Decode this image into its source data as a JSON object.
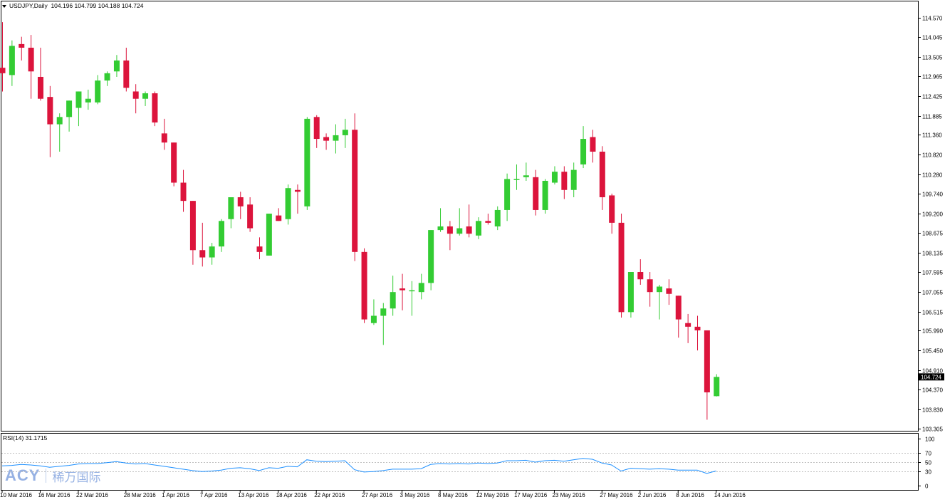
{
  "window": {
    "symbol_line": "USDJPY,Daily",
    "ohlc_line": "104.196 104.799 104.188 104.724",
    "menu_icon": "triangle-down-icon"
  },
  "colors": {
    "bull": "#33cc33",
    "bear": "#dc143c",
    "rsi_line": "#1e90ff",
    "grid": "#c0c0c0",
    "background": "#ffffff"
  },
  "watermark": {
    "brand": "ACY",
    "cn": "稀万国际"
  },
  "chart_data": [
    {
      "type": "candlestick",
      "title": "USDJPY,Daily",
      "ylim": [
        103.305,
        114.57
      ],
      "price_ticks": [
        "114.570",
        "114.045",
        "113.505",
        "112.965",
        "112.425",
        "111.885",
        "111.360",
        "110.820",
        "110.280",
        "109.740",
        "109.200",
        "108.675",
        "108.135",
        "107.595",
        "107.055",
        "106.515",
        "105.990",
        "105.450",
        "104.910",
        "104.370",
        "103.830",
        "103.305"
      ],
      "current_price": "104.724",
      "x_labels": [
        "10 Mar 2016",
        "16 Mar 2016",
        "22 Mar 2016",
        "28 Mar 2016",
        "1 Apr 2016",
        "7 Apr 2016",
        "13 Apr 2016",
        "18 Apr 2016",
        "22 Apr 2016",
        "27 Apr 2016",
        "3 May 2016",
        "8 May 2016",
        "12 May 2016",
        "17 May 2016",
        "23 May 2016",
        "27 May 2016",
        "2 Jun 2016",
        "8 Jun 2016",
        "14 Jun 2016"
      ],
      "candles": [
        {
          "o": 113.2,
          "h": 114.45,
          "l": 112.55,
          "c": 113.05
        },
        {
          "o": 113.0,
          "h": 113.95,
          "l": 112.7,
          "c": 113.8
        },
        {
          "o": 113.85,
          "h": 114.05,
          "l": 113.4,
          "c": 113.75
        },
        {
          "o": 113.75,
          "h": 114.1,
          "l": 112.35,
          "c": 113.1
        },
        {
          "o": 112.95,
          "h": 113.75,
          "l": 112.3,
          "c": 112.35
        },
        {
          "o": 112.4,
          "h": 112.7,
          "l": 110.75,
          "c": 111.65
        },
        {
          "o": 111.65,
          "h": 111.95,
          "l": 110.9,
          "c": 111.85
        },
        {
          "o": 111.85,
          "h": 112.3,
          "l": 111.45,
          "c": 112.3
        },
        {
          "o": 112.1,
          "h": 112.55,
          "l": 111.6,
          "c": 112.55
        },
        {
          "o": 112.25,
          "h": 112.6,
          "l": 112.05,
          "c": 112.35
        },
        {
          "o": 112.25,
          "h": 113.0,
          "l": 112.2,
          "c": 112.85
        },
        {
          "o": 112.85,
          "h": 113.1,
          "l": 112.7,
          "c": 113.05
        },
        {
          "o": 113.1,
          "h": 113.55,
          "l": 112.95,
          "c": 113.4
        },
        {
          "o": 113.4,
          "h": 113.75,
          "l": 112.55,
          "c": 112.65
        },
        {
          "o": 112.55,
          "h": 112.75,
          "l": 111.95,
          "c": 112.35
        },
        {
          "o": 112.35,
          "h": 112.55,
          "l": 112.15,
          "c": 112.5
        },
        {
          "o": 112.5,
          "h": 112.55,
          "l": 111.6,
          "c": 111.7
        },
        {
          "o": 111.4,
          "h": 111.8,
          "l": 110.95,
          "c": 111.15
        },
        {
          "o": 111.15,
          "h": 111.15,
          "l": 109.95,
          "c": 110.05
        },
        {
          "o": 110.05,
          "h": 110.4,
          "l": 109.25,
          "c": 109.55
        },
        {
          "o": 109.55,
          "h": 109.55,
          "l": 107.8,
          "c": 108.2
        },
        {
          "o": 108.2,
          "h": 108.95,
          "l": 107.75,
          "c": 108.0
        },
        {
          "o": 108.0,
          "h": 108.4,
          "l": 107.8,
          "c": 108.3
        },
        {
          "o": 108.3,
          "h": 109.05,
          "l": 108.15,
          "c": 109.0
        },
        {
          "o": 109.05,
          "h": 109.6,
          "l": 108.8,
          "c": 109.65
        },
        {
          "o": 109.65,
          "h": 109.8,
          "l": 109.05,
          "c": 109.4
        },
        {
          "o": 109.45,
          "h": 109.65,
          "l": 108.7,
          "c": 108.8
        },
        {
          "o": 108.3,
          "h": 108.55,
          "l": 107.95,
          "c": 108.15
        },
        {
          "o": 108.05,
          "h": 109.2,
          "l": 108.05,
          "c": 109.2
        },
        {
          "o": 109.15,
          "h": 109.35,
          "l": 109.0,
          "c": 109.0
        },
        {
          "o": 109.05,
          "h": 110.0,
          "l": 108.9,
          "c": 109.9
        },
        {
          "o": 109.85,
          "h": 110.0,
          "l": 109.2,
          "c": 109.8
        },
        {
          "o": 109.4,
          "h": 111.85,
          "l": 109.3,
          "c": 111.8
        },
        {
          "o": 111.85,
          "h": 111.9,
          "l": 111.0,
          "c": 111.25
        },
        {
          "o": 111.3,
          "h": 111.4,
          "l": 110.95,
          "c": 111.2
        },
        {
          "o": 111.2,
          "h": 111.65,
          "l": 110.85,
          "c": 111.35
        },
        {
          "o": 111.35,
          "h": 111.8,
          "l": 111.0,
          "c": 111.5
        },
        {
          "o": 111.5,
          "h": 111.95,
          "l": 107.9,
          "c": 108.15
        },
        {
          "o": 108.15,
          "h": 108.25,
          "l": 106.2,
          "c": 106.3
        },
        {
          "o": 106.2,
          "h": 106.85,
          "l": 106.15,
          "c": 106.4
        },
        {
          "o": 106.4,
          "h": 106.75,
          "l": 105.6,
          "c": 106.6
        },
        {
          "o": 106.6,
          "h": 107.5,
          "l": 106.4,
          "c": 107.05
        },
        {
          "o": 107.15,
          "h": 107.55,
          "l": 106.55,
          "c": 107.1
        },
        {
          "o": 107.1,
          "h": 107.35,
          "l": 106.4,
          "c": 107.1
        },
        {
          "o": 107.05,
          "h": 107.55,
          "l": 106.85,
          "c": 107.3
        },
        {
          "o": 107.3,
          "h": 108.75,
          "l": 107.1,
          "c": 108.75
        },
        {
          "o": 108.75,
          "h": 109.35,
          "l": 108.7,
          "c": 108.85
        },
        {
          "o": 108.85,
          "h": 109.0,
          "l": 108.2,
          "c": 108.65
        },
        {
          "o": 108.65,
          "h": 109.35,
          "l": 108.6,
          "c": 108.8
        },
        {
          "o": 108.85,
          "h": 109.45,
          "l": 108.55,
          "c": 108.65
        },
        {
          "o": 108.6,
          "h": 109.1,
          "l": 108.5,
          "c": 109.0
        },
        {
          "o": 109.0,
          "h": 109.2,
          "l": 108.9,
          "c": 108.95
        },
        {
          "o": 108.85,
          "h": 109.4,
          "l": 108.75,
          "c": 109.3
        },
        {
          "o": 109.3,
          "h": 110.3,
          "l": 109.0,
          "c": 110.15
        },
        {
          "o": 110.15,
          "h": 110.55,
          "l": 109.85,
          "c": 110.15
        },
        {
          "o": 110.2,
          "h": 110.6,
          "l": 110.1,
          "c": 110.25
        },
        {
          "o": 110.2,
          "h": 110.4,
          "l": 109.15,
          "c": 109.3
        },
        {
          "o": 109.3,
          "h": 110.15,
          "l": 109.2,
          "c": 110.1
        },
        {
          "o": 110.05,
          "h": 110.5,
          "l": 110.0,
          "c": 110.35
        },
        {
          "o": 110.35,
          "h": 110.5,
          "l": 109.6,
          "c": 109.85
        },
        {
          "o": 109.85,
          "h": 110.6,
          "l": 109.65,
          "c": 110.4
        },
        {
          "o": 110.55,
          "h": 111.6,
          "l": 110.45,
          "c": 111.25
        },
        {
          "o": 111.3,
          "h": 111.5,
          "l": 110.6,
          "c": 110.9
        },
        {
          "o": 110.9,
          "h": 111.05,
          "l": 109.3,
          "c": 109.65
        },
        {
          "o": 109.7,
          "h": 109.75,
          "l": 108.65,
          "c": 108.95
        },
        {
          "o": 108.95,
          "h": 109.2,
          "l": 106.35,
          "c": 106.5
        },
        {
          "o": 106.5,
          "h": 107.6,
          "l": 106.35,
          "c": 107.6
        },
        {
          "o": 107.6,
          "h": 107.95,
          "l": 107.25,
          "c": 107.4
        },
        {
          "o": 107.4,
          "h": 107.6,
          "l": 106.65,
          "c": 107.05
        },
        {
          "o": 107.05,
          "h": 107.25,
          "l": 106.3,
          "c": 107.2
        },
        {
          "o": 107.15,
          "h": 107.4,
          "l": 106.7,
          "c": 107.0
        },
        {
          "o": 106.95,
          "h": 106.95,
          "l": 105.8,
          "c": 106.3
        },
        {
          "o": 106.2,
          "h": 106.45,
          "l": 105.65,
          "c": 106.1
        },
        {
          "o": 106.1,
          "h": 106.4,
          "l": 105.45,
          "c": 106.0
        },
        {
          "o": 106.0,
          "h": 106.0,
          "l": 103.55,
          "c": 104.3
        },
        {
          "o": 104.196,
          "h": 104.799,
          "l": 104.188,
          "c": 104.724
        }
      ]
    },
    {
      "type": "line",
      "title": "RSI(14) 31.1715",
      "ylim": [
        0,
        100
      ],
      "levels_labels": [
        "100",
        "70",
        "50",
        "30",
        "0"
      ],
      "series": [
        {
          "name": "RSI(14)",
          "values": [
            42,
            43,
            45,
            44,
            42,
            39,
            41,
            43,
            46,
            47,
            47,
            49,
            51,
            48,
            46,
            47,
            44,
            41,
            38,
            35,
            32,
            30,
            31,
            33,
            37,
            38,
            36,
            32,
            38,
            37,
            41,
            40,
            55,
            52,
            51,
            52,
            53,
            34,
            29,
            30,
            32,
            35,
            35,
            35,
            36,
            45,
            47,
            46,
            47,
            46,
            48,
            47,
            48,
            53,
            53,
            54,
            50,
            53,
            54,
            52,
            55,
            58,
            56,
            48,
            44,
            31,
            37,
            36,
            35,
            36,
            35,
            33,
            33,
            33,
            26,
            31.1715
          ]
        }
      ]
    }
  ]
}
